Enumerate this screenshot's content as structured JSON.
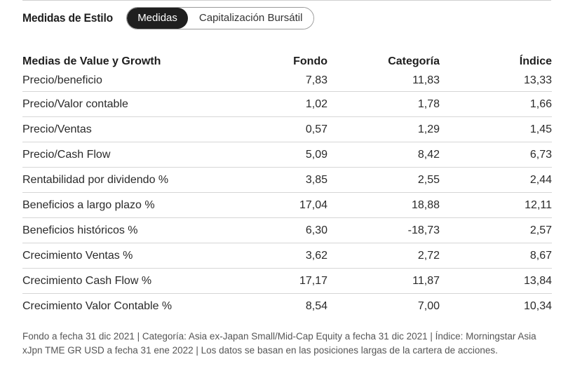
{
  "header": {
    "title": "Medidas de Estilo",
    "tabs": [
      {
        "label": "Medidas",
        "active": true
      },
      {
        "label": "Capitalización Bursátil",
        "active": false
      }
    ]
  },
  "table": {
    "columns": [
      "Medias de Value y Growth",
      "Fondo",
      "Categoría",
      "Índice"
    ],
    "rows": [
      {
        "name": "Precio/beneficio",
        "fondo": "7,83",
        "categoria": "11,83",
        "indice": "13,33"
      },
      {
        "name": "Precio/Valor contable",
        "fondo": "1,02",
        "categoria": "1,78",
        "indice": "1,66"
      },
      {
        "name": "Precio/Ventas",
        "fondo": "0,57",
        "categoria": "1,29",
        "indice": "1,45"
      },
      {
        "name": "Precio/Cash Flow",
        "fondo": "5,09",
        "categoria": "8,42",
        "indice": "6,73"
      },
      {
        "name": "Rentabilidad por dividendo %",
        "fondo": "3,85",
        "categoria": "2,55",
        "indice": "2,44"
      },
      {
        "name": "Beneficios a largo plazo %",
        "fondo": "17,04",
        "categoria": "18,88",
        "indice": "12,11"
      },
      {
        "name": "Beneficios históricos %",
        "fondo": "6,30",
        "categoria": "-18,73",
        "indice": "2,57"
      },
      {
        "name": "Crecimiento Ventas %",
        "fondo": "3,62",
        "categoria": "2,72",
        "indice": "8,67"
      },
      {
        "name": "Crecimiento Cash Flow %",
        "fondo": "17,17",
        "categoria": "11,87",
        "indice": "13,84"
      },
      {
        "name": "Crecimiento Valor Contable %",
        "fondo": "8,54",
        "categoria": "7,00",
        "indice": "10,34"
      }
    ]
  },
  "footnote": "Fondo a fecha 31 dic 2021 | Categoría: Asia ex-Japan Small/Mid-Cap Equity a fecha 31 dic 2021 | Índice: Morningstar Asia xJpn TME GR USD a fecha 31 ene 2022 | Los datos se basan en las posiciones largas de la cartera de acciones."
}
